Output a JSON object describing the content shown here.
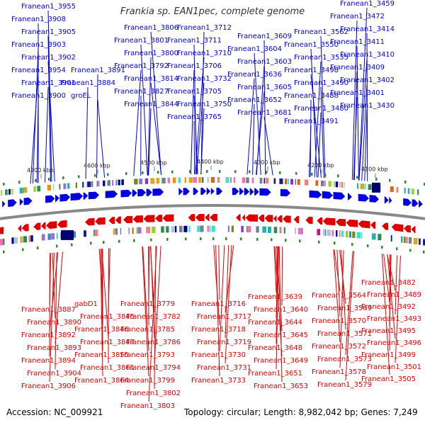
{
  "title": "Frankia sp. EAN1pec, complete genome",
  "footer": {
    "accession": "Accession: NC_009921",
    "topology": "Topology: circular; Length: 8,982,042 bp; Genes: 7,249"
  },
  "scale_labels": [
    "4700 kbp",
    "4600 kbp",
    "4500 kbp",
    "4400 kbp",
    "4300 kbp",
    "4200 kbp",
    "4100 kbp"
  ],
  "colors": {
    "forward": "#0000e0",
    "reverse": "#e00000",
    "backbone": "#888888"
  },
  "forward_labels": [
    "Franean1_3955",
    "Franean1_3908",
    "Franean1_3905",
    "Franean1_3903",
    "Franean1_3902",
    "Franean1_3954",
    "Franean1_3901",
    "Franean1_3900",
    "Franean1_3891",
    "Franean1_3884",
    "groEL",
    "Franean1_3806",
    "Franean1_3801",
    "Franean1_3800",
    "Franean1_3792",
    "Franean1_3814",
    "Franean1_3827",
    "Franean1_3844",
    "Franean1_3712",
    "Franean1_3711",
    "Franean1_3710",
    "Franean1_3706",
    "Franean1_3732",
    "Franean1_3705",
    "Franean1_3750",
    "Franean1_3765",
    "Franean1_3609",
    "Franean1_3604",
    "Franean1_3603",
    "Franean1_3636",
    "Franean1_3605",
    "Franean1_3652",
    "Franean1_3681",
    "Franean1_3562",
    "Franean1_3550",
    "Franean1_3535",
    "Franean1_3498",
    "Franean1_3490",
    "Franean1_3488",
    "Franean1_3480",
    "Franean1_3491",
    "Franean1_3459",
    "Franean1_3472",
    "Franean1_3414",
    "Franean1_3411",
    "Franean1_3410",
    "Franean1_3409",
    "Franean1_3402",
    "Franean1_3401",
    "Franean1_3430"
  ],
  "reverse_labels": [
    "Franean1_3887",
    "Franean1_3890",
    "Franean1_3892",
    "Franean1_3893",
    "Franean1_3894",
    "Franean1_3904",
    "Franean1_3906",
    "gabD1",
    "Franean1_3845",
    "Franean1_3846",
    "Franean1_3847",
    "Franean1_3855",
    "Franean1_3861",
    "Franean1_3864",
    "Franean1_3779",
    "Franean1_3782",
    "Franean1_3785",
    "Franean1_3786",
    "Franean1_3793",
    "Franean1_3794",
    "Franean1_3799",
    "Franean1_3802",
    "Franean1_3803",
    "Franean1_3716",
    "Franean1_3717",
    "Franean1_3718",
    "Franean1_3719",
    "Franean1_3730",
    "Franean1_3731",
    "Franean1_3733",
    "Franean1_3639",
    "Franean1_3640",
    "Franean1_3644",
    "Franean1_3645",
    "Franean1_3648",
    "Franean1_3649",
    "Franean1_3651",
    "Franean1_3653",
    "Franean1_3564",
    "Franean1_3569",
    "Franean1_3570",
    "Franean1_3571",
    "Franean1_3572",
    "Franean1_3573",
    "Franean1_3578",
    "Franean1_3579",
    "Franean1_3482",
    "Franean1_3489",
    "Franean1_3492",
    "Franean1_3493",
    "Franean1_3495",
    "Franean1_3496",
    "Franean1_3499",
    "Franean1_3501",
    "Franean1_3505"
  ]
}
